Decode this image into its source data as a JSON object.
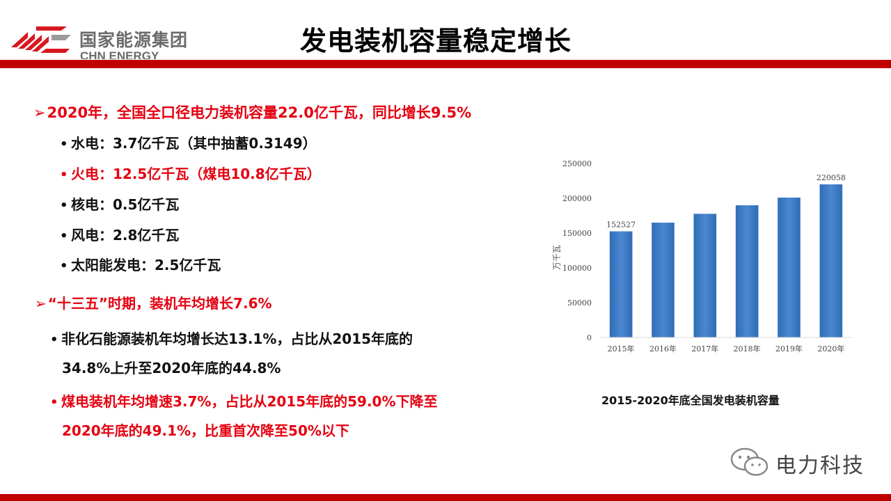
{
  "header": {
    "logo_cn": "国家能源集团",
    "logo_en": "CHN ENERGY",
    "title": "发电装机容量稳定增长"
  },
  "colors": {
    "accent_red": "#c00000",
    "text_red": "#e50010",
    "bar_blue": "#3a78c3"
  },
  "content": {
    "section1": {
      "heading": "2020年，全国全口径电力装机容量22.0亿千瓦，同比增长9.5%",
      "items": [
        {
          "text": "水电：3.7亿千瓦（其中抽蓄0.3149）",
          "highlight": false
        },
        {
          "text": "火电：12.5亿千瓦（煤电10.8亿千瓦）",
          "highlight": true
        },
        {
          "text": "核电：0.5亿千瓦",
          "highlight": false
        },
        {
          "text": "风电：2.8亿千瓦",
          "highlight": false
        },
        {
          "text": "太阳能发电：2.5亿千瓦",
          "highlight": false
        }
      ]
    },
    "section2": {
      "heading": "“十三五”时期，装机年均增长7.6%",
      "points": [
        {
          "lines": [
            "非化石能源装机年均增长达13.1%，占比从2015年底的",
            "34.8%上升至2020年底的44.8%"
          ],
          "highlight": false
        },
        {
          "lines": [
            "煤电装机年均增速3.7%，占比从2015年底的59.0%下降至",
            "2020年底的49.1%，比重首次降至50%以下"
          ],
          "highlight": true
        }
      ]
    }
  },
  "chart_data": {
    "type": "bar",
    "categories": [
      "2015年",
      "2016年",
      "2017年",
      "2018年",
      "2019年",
      "2020年"
    ],
    "values": [
      152527,
      165051,
      177708,
      189967,
      201006,
      220058
    ],
    "data_labels": [
      {
        "category": "2015年",
        "text": "152527"
      },
      {
        "category": "2020年",
        "text": "220058"
      }
    ],
    "ylabel": "万千瓦",
    "ylim": [
      0,
      250000
    ],
    "yticks": [
      "0",
      "50000",
      "100000",
      "150000",
      "200000",
      "250000"
    ],
    "grid": false,
    "title": "2015-2020年底全国发电装机容量"
  },
  "watermark": {
    "text": "电力科技",
    "icon": "wechat-icon"
  }
}
